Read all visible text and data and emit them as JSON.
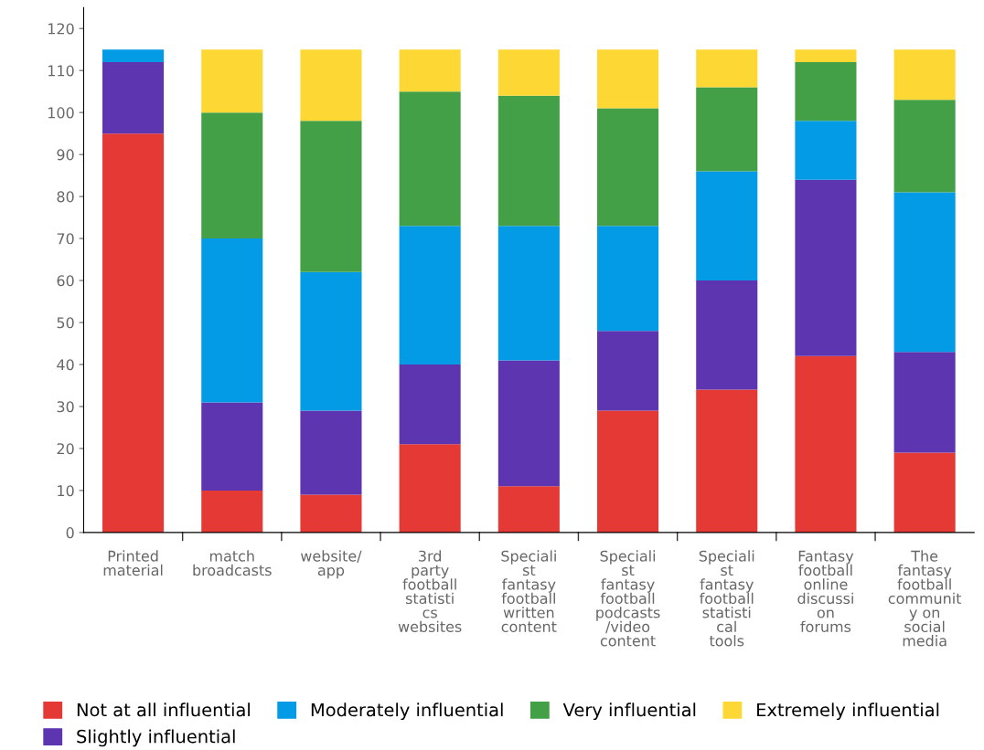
{
  "chart_data": {
    "type": "bar",
    "stacked": true,
    "categories": [
      "Printed\nmaterial",
      "match\nbroadcasts",
      "website/\napp",
      "3rd\nparty\nfootball\nstatisti\ncs\nwebsites",
      "Speciali\nst\nfantasy\nfootball\nwritten\ncontent",
      "Speciali\nst\nfantasy\nfootball\npodcasts\n/video\ncontent",
      "Speciali\nst\nfantasy\nfootball\nstatisti\ncal\ntools",
      "Fantasy\nfootball\nonline\ndiscussi\non\nforums",
      "The\nfantasy\nfootball\ncommunit\ny on\nsocial\nmedia"
    ],
    "series": [
      {
        "name": "Not at all influential",
        "color": "#e53935",
        "values": [
          95,
          10,
          9,
          21,
          11,
          29,
          34,
          42,
          19
        ]
      },
      {
        "name": "Slightly influential",
        "color": "#5e35b1",
        "values": [
          17,
          21,
          20,
          19,
          30,
          19,
          26,
          42,
          24
        ]
      },
      {
        "name": "Moderately influential",
        "color": "#039be5",
        "values": [
          3,
          39,
          33,
          33,
          32,
          25,
          26,
          14,
          38
        ]
      },
      {
        "name": "Very influential",
        "color": "#43a047",
        "values": [
          0,
          30,
          36,
          32,
          31,
          28,
          20,
          14,
          22
        ]
      },
      {
        "name": "Extremely influential",
        "color": "#fdd835",
        "values": [
          0,
          15,
          17,
          10,
          11,
          14,
          9,
          3,
          12
        ]
      }
    ],
    "ylim": [
      0,
      125
    ],
    "yticks": [
      0,
      10,
      20,
      30,
      40,
      50,
      60,
      70,
      80,
      90,
      100,
      110,
      120
    ],
    "grid": false,
    "legend": "bottom"
  }
}
